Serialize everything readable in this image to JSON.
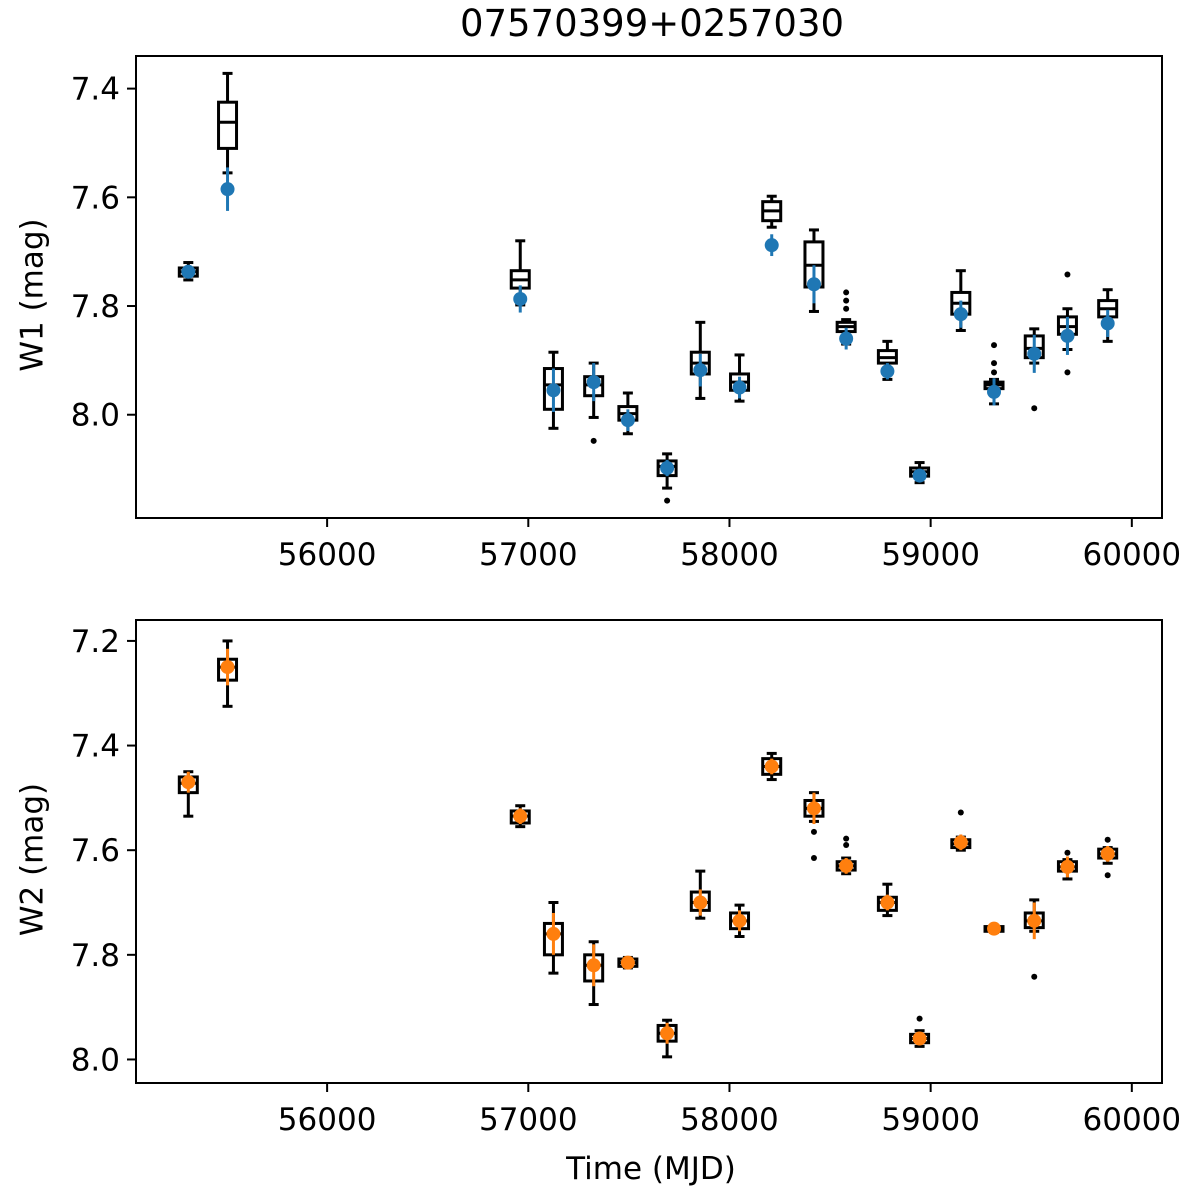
{
  "title": "07570399+0257030",
  "chart_data": [
    {
      "type": "scatter",
      "panel": "top",
      "ylabel": "W1 (mag)",
      "xlabel": "",
      "xlim": [
        55050,
        60150
      ],
      "ylim": [
        8.19,
        7.34
      ],
      "y_inverted": true,
      "xticks": [
        56000,
        57000,
        58000,
        59000,
        60000
      ],
      "yticks": [
        7.4,
        7.6,
        7.8,
        8.0
      ],
      "ytick_labels": [
        "7.4",
        "7.6",
        "7.8",
        "8.0"
      ],
      "marker_color": "#1f77b4",
      "points": [
        {
          "x": 55310,
          "y": 7.737,
          "err": 0.012
        },
        {
          "x": 55505,
          "y": 7.585,
          "err": 0.04
        },
        {
          "x": 56960,
          "y": 7.787,
          "err": 0.025
        },
        {
          "x": 57125,
          "y": 7.955,
          "err": 0.04
        },
        {
          "x": 57325,
          "y": 7.94,
          "err": 0.035
        },
        {
          "x": 57495,
          "y": 8.01,
          "err": 0.02
        },
        {
          "x": 57690,
          "y": 8.098,
          "err": 0.015
        },
        {
          "x": 57855,
          "y": 7.918,
          "err": 0.03
        },
        {
          "x": 58050,
          "y": 7.95,
          "err": 0.02
        },
        {
          "x": 58210,
          "y": 7.688,
          "err": 0.02
        },
        {
          "x": 58420,
          "y": 7.76,
          "err": 0.035
        },
        {
          "x": 58580,
          "y": 7.86,
          "err": 0.02
        },
        {
          "x": 58785,
          "y": 7.92,
          "err": 0.015
        },
        {
          "x": 58945,
          "y": 8.112,
          "err": 0.012
        },
        {
          "x": 59150,
          "y": 7.815,
          "err": 0.025
        },
        {
          "x": 59315,
          "y": 7.958,
          "err": 0.025
        },
        {
          "x": 59515,
          "y": 7.888,
          "err": 0.035
        },
        {
          "x": 59680,
          "y": 7.855,
          "err": 0.035
        },
        {
          "x": 59880,
          "y": 7.832,
          "err": 0.025
        }
      ],
      "boxes": [
        {
          "x": 55310,
          "wlo": 7.72,
          "q1": 7.73,
          "med": 7.737,
          "q3": 7.745,
          "whi": 7.752,
          "fliers": []
        },
        {
          "x": 55505,
          "wlo": 7.372,
          "q1": 7.425,
          "med": 7.462,
          "q3": 7.51,
          "whi": 7.555,
          "fliers": []
        },
        {
          "x": 56960,
          "wlo": 7.68,
          "q1": 7.735,
          "med": 7.752,
          "q3": 7.767,
          "whi": 7.798,
          "fliers": []
        },
        {
          "x": 57125,
          "wlo": 7.885,
          "q1": 7.915,
          "med": 7.945,
          "q3": 7.99,
          "whi": 8.025,
          "fliers": []
        },
        {
          "x": 57325,
          "wlo": 7.905,
          "q1": 7.93,
          "med": 7.945,
          "q3": 7.965,
          "whi": 8.005,
          "fliers": [
            8.048
          ]
        },
        {
          "x": 57495,
          "wlo": 7.96,
          "q1": 7.985,
          "med": 7.998,
          "q3": 8.01,
          "whi": 8.035,
          "fliers": []
        },
        {
          "x": 57690,
          "wlo": 8.072,
          "q1": 8.085,
          "med": 8.095,
          "q3": 8.112,
          "whi": 8.135,
          "fliers": [
            8.158
          ]
        },
        {
          "x": 57855,
          "wlo": 7.83,
          "q1": 7.885,
          "med": 7.905,
          "q3": 7.925,
          "whi": 7.97,
          "fliers": []
        },
        {
          "x": 58050,
          "wlo": 7.89,
          "q1": 7.925,
          "med": 7.94,
          "q3": 7.955,
          "whi": 7.975,
          "fliers": []
        },
        {
          "x": 58210,
          "wlo": 7.598,
          "q1": 7.608,
          "med": 7.625,
          "q3": 7.643,
          "whi": 7.655,
          "fliers": []
        },
        {
          "x": 58420,
          "wlo": 7.66,
          "q1": 7.682,
          "med": 7.725,
          "q3": 7.765,
          "whi": 7.81,
          "fliers": []
        },
        {
          "x": 58580,
          "wlo": 7.825,
          "q1": 7.83,
          "med": 7.838,
          "q3": 7.847,
          "whi": 7.87,
          "fliers": [
            7.775,
            7.79,
            7.805
          ]
        },
        {
          "x": 58785,
          "wlo": 7.865,
          "q1": 7.882,
          "med": 7.895,
          "q3": 7.905,
          "whi": 7.935,
          "fliers": []
        },
        {
          "x": 58945,
          "wlo": 8.088,
          "q1": 8.098,
          "med": 8.105,
          "q3": 8.113,
          "whi": 8.125,
          "fliers": []
        },
        {
          "x": 59150,
          "wlo": 7.735,
          "q1": 7.775,
          "med": 7.795,
          "q3": 7.815,
          "whi": 7.845,
          "fliers": []
        },
        {
          "x": 59315,
          "wlo": 7.935,
          "q1": 7.94,
          "med": 7.945,
          "q3": 7.952,
          "whi": 7.98,
          "fliers": [
            7.872,
            7.905,
            7.922
          ]
        },
        {
          "x": 59515,
          "wlo": 7.842,
          "q1": 7.855,
          "med": 7.878,
          "q3": 7.895,
          "whi": 7.905,
          "fliers": [
            7.988
          ]
        },
        {
          "x": 59680,
          "wlo": 7.805,
          "q1": 7.82,
          "med": 7.838,
          "q3": 7.852,
          "whi": 7.88,
          "fliers": [
            7.742,
            7.922
          ]
        },
        {
          "x": 59880,
          "wlo": 7.77,
          "q1": 7.79,
          "med": 7.805,
          "q3": 7.82,
          "whi": 7.865,
          "fliers": []
        }
      ]
    },
    {
      "type": "scatter",
      "panel": "bottom",
      "ylabel": "W2 (mag)",
      "xlabel": "Time (MJD)",
      "xlim": [
        55050,
        60150
      ],
      "ylim": [
        8.045,
        7.16
      ],
      "y_inverted": true,
      "xticks": [
        56000,
        57000,
        58000,
        59000,
        60000
      ],
      "yticks": [
        7.2,
        7.4,
        7.6,
        7.8,
        8.0
      ],
      "ytick_labels": [
        "7.2",
        "7.4",
        "7.6",
        "7.8",
        "8.0"
      ],
      "marker_color": "#ff7f0e",
      "points": [
        {
          "x": 55310,
          "y": 7.47,
          "err": 0.02
        },
        {
          "x": 55505,
          "y": 7.25,
          "err": 0.035
        },
        {
          "x": 56960,
          "y": 7.535,
          "err": 0.015
        },
        {
          "x": 57125,
          "y": 7.76,
          "err": 0.04
        },
        {
          "x": 57325,
          "y": 7.82,
          "err": 0.04
        },
        {
          "x": 57495,
          "y": 7.815,
          "err": 0.012
        },
        {
          "x": 57690,
          "y": 7.95,
          "err": 0.02
        },
        {
          "x": 57855,
          "y": 7.7,
          "err": 0.025
        },
        {
          "x": 58050,
          "y": 7.735,
          "err": 0.02
        },
        {
          "x": 58210,
          "y": 7.44,
          "err": 0.015
        },
        {
          "x": 58420,
          "y": 7.52,
          "err": 0.03
        },
        {
          "x": 58580,
          "y": 7.63,
          "err": 0.015
        },
        {
          "x": 58785,
          "y": 7.7,
          "err": 0.015
        },
        {
          "x": 58945,
          "y": 7.96,
          "err": 0.012
        },
        {
          "x": 59150,
          "y": 7.585,
          "err": 0.015
        },
        {
          "x": 59315,
          "y": 7.75,
          "err": 0.01
        },
        {
          "x": 59515,
          "y": 7.735,
          "err": 0.035
        },
        {
          "x": 59680,
          "y": 7.632,
          "err": 0.02
        },
        {
          "x": 59880,
          "y": 7.607,
          "err": 0.015
        }
      ],
      "boxes": [
        {
          "x": 55310,
          "wlo": 7.45,
          "q1": 7.46,
          "med": 7.472,
          "q3": 7.49,
          "whi": 7.535,
          "fliers": []
        },
        {
          "x": 55505,
          "wlo": 7.2,
          "q1": 7.235,
          "med": 7.25,
          "q3": 7.275,
          "whi": 7.325,
          "fliers": []
        },
        {
          "x": 56960,
          "wlo": 7.515,
          "q1": 7.525,
          "med": 7.535,
          "q3": 7.548,
          "whi": 7.555,
          "fliers": []
        },
        {
          "x": 57125,
          "wlo": 7.7,
          "q1": 7.74,
          "med": 7.76,
          "q3": 7.8,
          "whi": 7.835,
          "fliers": []
        },
        {
          "x": 57325,
          "wlo": 7.775,
          "q1": 7.8,
          "med": 7.82,
          "q3": 7.85,
          "whi": 7.895,
          "fliers": []
        },
        {
          "x": 57495,
          "wlo": 7.805,
          "q1": 7.808,
          "med": 7.815,
          "q3": 7.822,
          "whi": 7.825,
          "fliers": []
        },
        {
          "x": 57690,
          "wlo": 7.925,
          "q1": 7.935,
          "med": 7.95,
          "q3": 7.965,
          "whi": 7.995,
          "fliers": []
        },
        {
          "x": 57855,
          "wlo": 7.64,
          "q1": 7.68,
          "med": 7.7,
          "q3": 7.715,
          "whi": 7.73,
          "fliers": []
        },
        {
          "x": 58050,
          "wlo": 7.705,
          "q1": 7.72,
          "med": 7.735,
          "q3": 7.75,
          "whi": 7.765,
          "fliers": []
        },
        {
          "x": 58210,
          "wlo": 7.415,
          "q1": 7.425,
          "med": 7.44,
          "q3": 7.455,
          "whi": 7.465,
          "fliers": []
        },
        {
          "x": 58420,
          "wlo": 7.49,
          "q1": 7.505,
          "med": 7.52,
          "q3": 7.535,
          "whi": 7.545,
          "fliers": [
            7.565,
            7.615
          ]
        },
        {
          "x": 58580,
          "wlo": 7.615,
          "q1": 7.622,
          "med": 7.63,
          "q3": 7.638,
          "whi": 7.645,
          "fliers": [
            7.578,
            7.59
          ]
        },
        {
          "x": 58785,
          "wlo": 7.665,
          "q1": 7.69,
          "med": 7.7,
          "q3": 7.715,
          "whi": 7.725,
          "fliers": []
        },
        {
          "x": 58945,
          "wlo": 7.945,
          "q1": 7.952,
          "med": 7.96,
          "q3": 7.968,
          "whi": 7.975,
          "fliers": [
            7.922
          ]
        },
        {
          "x": 59150,
          "wlo": 7.575,
          "q1": 7.58,
          "med": 7.588,
          "q3": 7.595,
          "whi": 7.6,
          "fliers": [
            7.528
          ]
        },
        {
          "x": 59315,
          "wlo": 7.745,
          "q1": 7.746,
          "med": 7.75,
          "q3": 7.755,
          "whi": 7.757,
          "fliers": []
        },
        {
          "x": 59515,
          "wlo": 7.695,
          "q1": 7.72,
          "med": 7.735,
          "q3": 7.748,
          "whi": 7.755,
          "fliers": [
            7.842
          ]
        },
        {
          "x": 59680,
          "wlo": 7.618,
          "q1": 7.622,
          "med": 7.632,
          "q3": 7.64,
          "whi": 7.655,
          "fliers": [
            7.605
          ]
        },
        {
          "x": 59880,
          "wlo": 7.595,
          "q1": 7.598,
          "med": 7.607,
          "q3": 7.615,
          "whi": 7.625,
          "fliers": [
            7.58,
            7.648
          ]
        }
      ]
    }
  ]
}
